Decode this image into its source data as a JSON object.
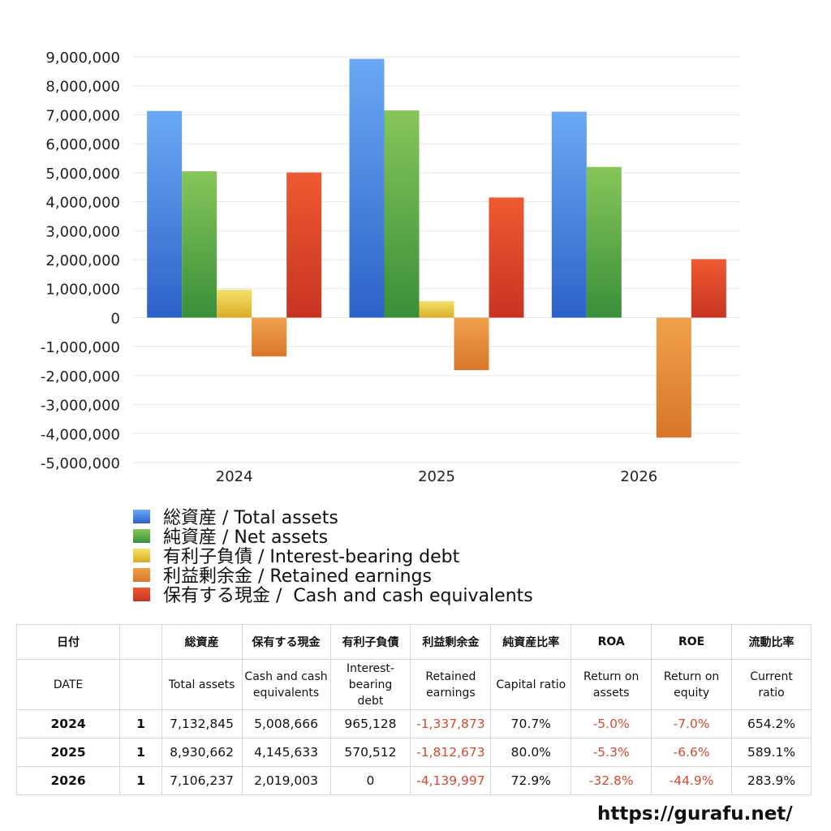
{
  "chart_data": {
    "type": "bar",
    "categories": [
      "2024",
      "2025",
      "2026"
    ],
    "ylim": [
      -5000000,
      9000000
    ],
    "yticks": [
      9000000,
      8000000,
      7000000,
      6000000,
      5000000,
      4000000,
      3000000,
      2000000,
      1000000,
      0,
      -1000000,
      -2000000,
      -3000000,
      -4000000,
      -5000000
    ],
    "ytick_labels": [
      "9,000,000",
      "8,000,000",
      "7,000,000",
      "6,000,000",
      "5,000,000",
      "4,000,000",
      "3,000,000",
      "2,000,000",
      "1,000,000",
      "0",
      "-1,000,000",
      "-2,000,000",
      "-3,000,000",
      "-4,000,000",
      "-5,000,000"
    ],
    "grid": true,
    "legend_position": "bottom",
    "series": [
      {
        "name": "総資産 / Total assets",
        "color_top": "#6aa9f4",
        "color_bottom": "#2d62c9",
        "values": [
          7132845,
          8930662,
          7106237
        ]
      },
      {
        "name": "純資産 / Net assets",
        "color_top": "#86c659",
        "color_bottom": "#3a8f3a",
        "values": [
          5050000,
          7150000,
          5200000
        ]
      },
      {
        "name": "有利子負債 / Interest-bearing debt",
        "color_top": "#f4e26a",
        "color_bottom": "#d9ad26",
        "values": [
          965128,
          570512,
          0
        ]
      },
      {
        "name": "利益剰余金 / Retained earnings",
        "color_top": "#f0a14a",
        "color_bottom": "#d9762a",
        "values": [
          -1337873,
          -1812673,
          -4139997
        ]
      },
      {
        "name": "保有する現金 /  Cash and cash equivalents",
        "color_top": "#ee5a30",
        "color_bottom": "#c83422",
        "values": [
          5008666,
          4145633,
          2019003
        ]
      }
    ]
  },
  "table": {
    "header_ja": [
      "日付",
      "",
      "総資産",
      "保有する現金",
      "有利子負債",
      "利益剰余金",
      "純資産比率",
      "ROA",
      "ROE",
      "流動比率"
    ],
    "header_en": [
      "DATE",
      "",
      "Total assets",
      "Cash and cash\nequivalents",
      "Interest-\nbearing\ndebt",
      "Retained\nearnings",
      "Capital ratio",
      "Return on\nassets",
      "Return on\nequity",
      "Current\nratio"
    ],
    "rows": [
      {
        "date": "2024",
        "month": "1",
        "total_assets": "7,132,845",
        "cash": "5,008,666",
        "debt": "965,128",
        "retained": "-1,337,873",
        "capital_ratio": "70.7%",
        "roa": "-5.0%",
        "roe": "-7.0%",
        "current_ratio": "654.2%"
      },
      {
        "date": "2025",
        "month": "1",
        "total_assets": "8,930,662",
        "cash": "4,145,633",
        "debt": "570,512",
        "retained": "-1,812,673",
        "capital_ratio": "80.0%",
        "roa": "-5.3%",
        "roe": "-6.6%",
        "current_ratio": "589.1%"
      },
      {
        "date": "2026",
        "month": "1",
        "total_assets": "7,106,237",
        "cash": "2,019,003",
        "debt": "0",
        "retained": "-4,139,997",
        "capital_ratio": "72.9%",
        "roa": "-32.8%",
        "roe": "-44.9%",
        "current_ratio": "283.9%"
      }
    ]
  },
  "footer": {
    "url": "https://gurafu.net/"
  },
  "colors": {
    "negative": "#d6492f",
    "grid": "#e6e6e6"
  }
}
